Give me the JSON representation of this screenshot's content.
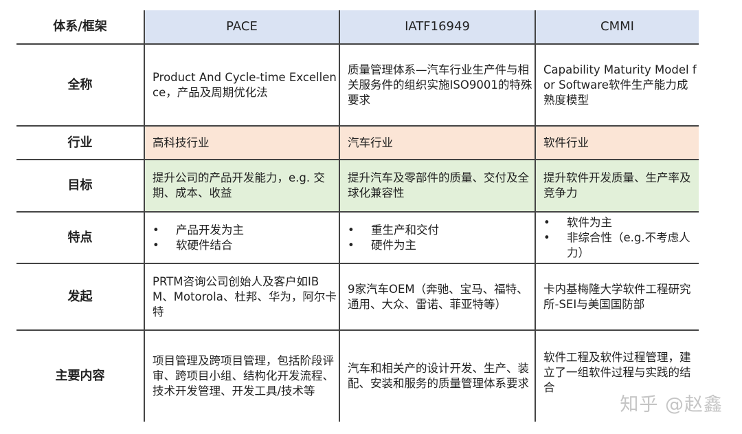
{
  "header": {
    "label": "体系/框架",
    "columns": [
      "PACE",
      "IATF16949",
      "CMMI"
    ]
  },
  "rows": [
    {
      "label": "全称",
      "cells": [
        "Product And Cycle-time Excellence，产品及周期优化法",
        "质量管理体系—汽车行业生产件与相关服务件的组织实施ISO9001的特殊要求",
        "Capability Maturity Model for Software软件生产能力成熟度模型"
      ]
    },
    {
      "label": "行业",
      "cells": [
        "高科技行业",
        "汽车行业",
        "软件行业"
      ]
    },
    {
      "label": "目标",
      "cells": [
        "提升公司的产品开发能力，e.g. 交期、成本、收益",
        "提升汽车及零部件的质量、交付及全球化兼容性",
        "提升软件开发质量、生产率及竞争力"
      ]
    },
    {
      "label": "特点",
      "bullets": [
        [
          "产品开发为主",
          "软硬件结合"
        ],
        [
          "重生产和交付",
          "硬件为主"
        ],
        [
          "软件为主",
          "非综合性（e.g.不考虑人力）"
        ]
      ]
    },
    {
      "label": "发起",
      "cells": [
        "PRTM咨询公司创始人及客户如IBM、Motorola、杜邦、华为，阿尔卡特",
        "9家汽车OEM（奔驰、宝马、福特、通用、大众、雷诺、菲亚特等）",
        "卡内基梅隆大学软件工程研究所-SEI与美国国防部"
      ]
    },
    {
      "label": "主要内容",
      "cells": [
        "项目管理及跨项目管理，包括阶段评审、跨项目小组、结构化开发流程、技术开发管理、开发工具/技术等",
        "汽车和相关产的设计开发、生产、装配、安装和服务的质量管理体系要求",
        "软件工程及软件过程管理，建立了一组软件过程与实践的结合"
      ]
    }
  ],
  "watermark": "知乎 @赵鑫",
  "colors": {
    "header_bg": "#dae3f3",
    "industry_bg": "#fbe5d6",
    "goal_bg": "#e2f0d9",
    "border": "#444444"
  }
}
